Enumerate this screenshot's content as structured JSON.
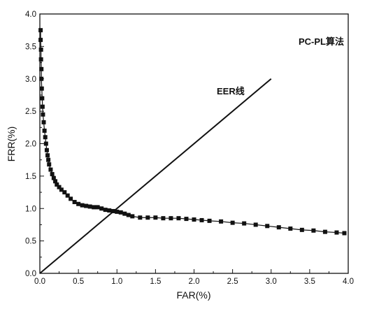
{
  "chart_data": {
    "type": "scatter",
    "xlabel": "FAR(%)",
    "ylabel": "FRR(%)",
    "xlim": [
      0,
      4.0
    ],
    "ylim": [
      0,
      4.0
    ],
    "xticks": [
      "0.0",
      "0.5",
      "1.0",
      "1.5",
      "2.0",
      "2.5",
      "3.0",
      "3.5",
      "4.0"
    ],
    "yticks": [
      "0.0",
      "0.5",
      "1.0",
      "1.5",
      "2.0",
      "2.5",
      "3.0",
      "3.5",
      "4.0"
    ],
    "grid": false,
    "legend": "PC-PL算法",
    "annotations": [
      {
        "text": "EER线"
      }
    ],
    "series": [
      {
        "name": "PC-PL算法",
        "mode": "line+markers",
        "points": [
          [
            0.01,
            3.75
          ],
          [
            0.01,
            3.6
          ],
          [
            0.015,
            3.45
          ],
          [
            0.015,
            3.3
          ],
          [
            0.02,
            3.15
          ],
          [
            0.02,
            3.0
          ],
          [
            0.025,
            2.85
          ],
          [
            0.03,
            2.7
          ],
          [
            0.035,
            2.57
          ],
          [
            0.04,
            2.45
          ],
          [
            0.05,
            2.33
          ],
          [
            0.06,
            2.2
          ],
          [
            0.07,
            2.1
          ],
          [
            0.08,
            2.0
          ],
          [
            0.09,
            1.9
          ],
          [
            0.1,
            1.82
          ],
          [
            0.11,
            1.75
          ],
          [
            0.12,
            1.68
          ],
          [
            0.14,
            1.6
          ],
          [
            0.16,
            1.53
          ],
          [
            0.18,
            1.47
          ],
          [
            0.2,
            1.42
          ],
          [
            0.22,
            1.37
          ],
          [
            0.25,
            1.33
          ],
          [
            0.28,
            1.29
          ],
          [
            0.32,
            1.25
          ],
          [
            0.36,
            1.2
          ],
          [
            0.4,
            1.15
          ],
          [
            0.45,
            1.1
          ],
          [
            0.5,
            1.07
          ],
          [
            0.55,
            1.05
          ],
          [
            0.6,
            1.04
          ],
          [
            0.65,
            1.03
          ],
          [
            0.7,
            1.02
          ],
          [
            0.75,
            1.02
          ],
          [
            0.8,
            1.0
          ],
          [
            0.85,
            0.98
          ],
          [
            0.9,
            0.97
          ],
          [
            0.95,
            0.96
          ],
          [
            1.0,
            0.95
          ],
          [
            1.05,
            0.94
          ],
          [
            1.1,
            0.92
          ],
          [
            1.15,
            0.9
          ],
          [
            1.2,
            0.88
          ],
          [
            1.3,
            0.86
          ],
          [
            1.4,
            0.86
          ],
          [
            1.5,
            0.86
          ],
          [
            1.6,
            0.85
          ],
          [
            1.7,
            0.85
          ],
          [
            1.8,
            0.85
          ],
          [
            1.9,
            0.84
          ],
          [
            2.0,
            0.83
          ],
          [
            2.1,
            0.82
          ],
          [
            2.2,
            0.81
          ],
          [
            2.35,
            0.8
          ],
          [
            2.5,
            0.78
          ],
          [
            2.65,
            0.77
          ],
          [
            2.8,
            0.75
          ],
          [
            2.95,
            0.73
          ],
          [
            3.1,
            0.71
          ],
          [
            3.25,
            0.69
          ],
          [
            3.4,
            0.67
          ],
          [
            3.55,
            0.66
          ],
          [
            3.7,
            0.64
          ],
          [
            3.85,
            0.63
          ],
          [
            3.95,
            0.62
          ]
        ]
      },
      {
        "name": "EER线",
        "mode": "line",
        "points": [
          [
            0.0,
            0.0
          ],
          [
            3.0,
            3.0
          ]
        ]
      }
    ]
  }
}
